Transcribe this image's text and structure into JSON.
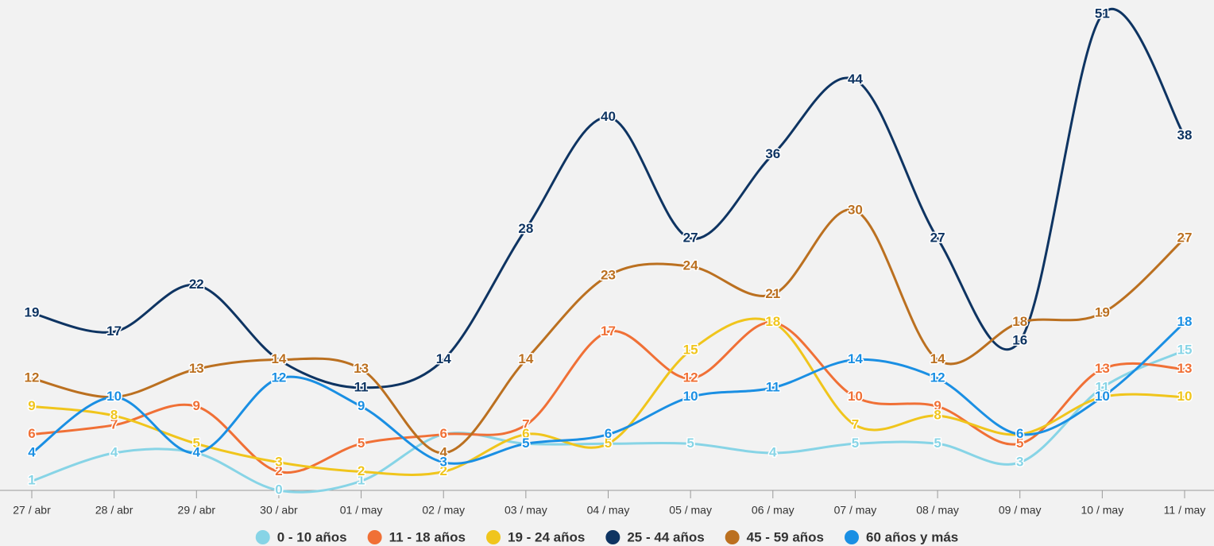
{
  "chart_data": {
    "type": "line",
    "categories": [
      "27 / abr",
      "28 / abr",
      "29 / abr",
      "30 / abr",
      "01 / may",
      "02 / may",
      "03 / may",
      "04 / may",
      "05 / may",
      "06 / may",
      "07 / may",
      "08 / may",
      "09 / may",
      "10 / may",
      "11 / may"
    ],
    "ylim": [
      0,
      52
    ],
    "series": [
      {
        "name": "0 - 10 años",
        "color": "#87d4e6",
        "values": [
          1,
          4,
          4,
          0,
          1,
          6,
          5,
          5,
          5,
          4,
          5,
          5,
          3,
          11,
          15
        ]
      },
      {
        "name": "11 - 18 años",
        "color": "#f07036",
        "values": [
          6,
          7,
          9,
          2,
          5,
          6,
          7,
          17,
          12,
          18,
          10,
          9,
          5,
          13,
          13
        ]
      },
      {
        "name": "19 - 24 años",
        "color": "#f0c51c",
        "values": [
          9,
          8,
          5,
          3,
          2,
          2,
          6,
          5,
          15,
          18,
          7,
          8,
          6,
          10,
          10
        ]
      },
      {
        "name": "25 - 44 años",
        "color": "#0e3462",
        "values": [
          19,
          17,
          22,
          14,
          11,
          14,
          28,
          40,
          27,
          36,
          44,
          27,
          16,
          51,
          38
        ]
      },
      {
        "name": "45 - 59 años",
        "color": "#bb7020",
        "values": [
          12,
          10,
          13,
          14,
          13,
          4,
          14,
          23,
          24,
          21,
          30,
          14,
          18,
          19,
          27
        ]
      },
      {
        "name": "60 años y más",
        "color": "#1a8fe3",
        "values": [
          4,
          10,
          4,
          12,
          9,
          3,
          5,
          6,
          10,
          11,
          14,
          12,
          6,
          10,
          18
        ]
      }
    ]
  }
}
